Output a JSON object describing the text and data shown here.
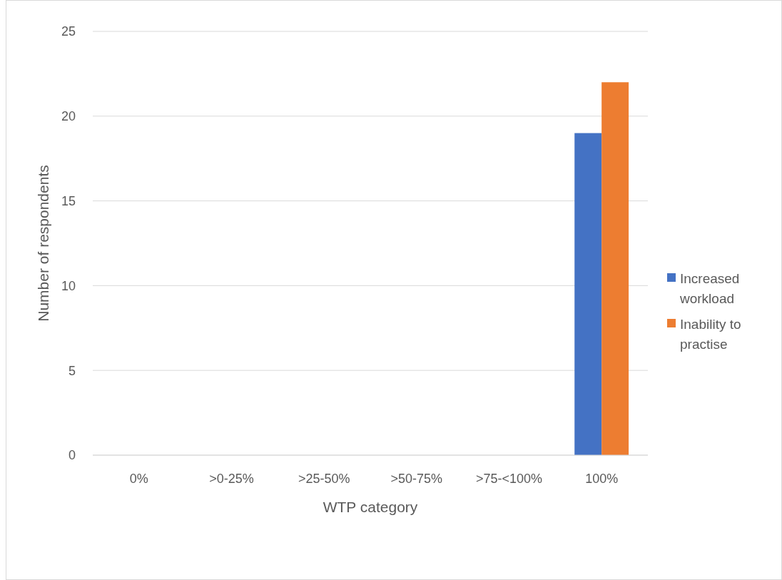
{
  "chart_data": {
    "type": "bar",
    "xlabel": "WTP category",
    "ylabel": "Number of respondents",
    "categories": [
      "0%",
      ">0-25%",
      ">25-50%",
      ">50-75%",
      ">75-<100%",
      "100%"
    ],
    "series": [
      {
        "name": "Increased workload",
        "color": "#4472c4",
        "values": [
          0,
          0,
          0,
          0,
          0,
          19
        ]
      },
      {
        "name": "Inability to practise",
        "color": "#ed7d31",
        "values": [
          0,
          0,
          0,
          0,
          0,
          22
        ]
      }
    ],
    "ylim": [
      0,
      25
    ],
    "yticks": [
      0,
      5,
      10,
      15,
      20,
      25
    ],
    "grid": "y",
    "legend": "right"
  }
}
